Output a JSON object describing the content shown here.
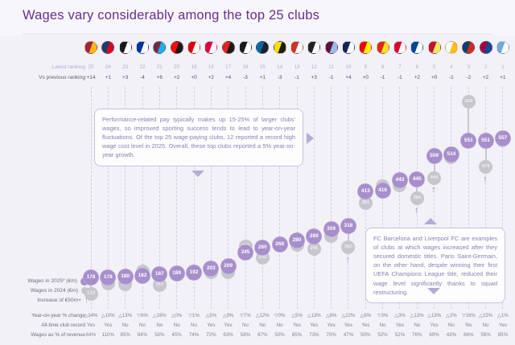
{
  "title": "Wages vary considerably among the top 25 clubs",
  "left_panel": {
    "latest_ranking_label": "Latest ranking",
    "vs_previous_label": "Vs previous ranking"
  },
  "legend": {
    "wages_2025": "Wages in 2025* (€m)",
    "wages_2024": "Wages in 2024 (€m)",
    "increase": "Increase of €50m+"
  },
  "row_labels": {
    "yoy": "Year-on-year % change",
    "record": "All-time club record",
    "revenue": "Wages as % of revenue"
  },
  "annotations": {
    "left": "Performance-related pay typically makes up 15-25% of larger clubs' wages, so improved sporting success tends to lead to year-on-year fluctuations. Of the top 25 wage-paying clubs, 12 reported a record high wage cost level in 2025. Overall, these top clubs reported a 5% year-on-year growth.",
    "right": "FC Barcelona and Liverpool FC are examples of clubs at which wages increased after they secured domestic titles. Paris Saint-Germain, on the other hand, despite winning their first UEFA Champions League title, reduced their wage level significantly thanks to squad restructuring."
  },
  "colors": {
    "accent_purple": "#6a2c91",
    "bubble_2025": "#a88ecb",
    "bubble_2024": "#c7c6cd",
    "annotation_border": "#c8c1de"
  },
  "chart_data": {
    "type": "bubble",
    "unit": "€m",
    "x_order": "revenue rank 25 (left) to 1 (right)",
    "ylim": [
      130,
      660
    ],
    "series": [
      "Wages in 2025 (€m)",
      "Wages in 2024 (€m)"
    ],
    "clubs": [
      {
        "rank": 25,
        "club": "Galatasaray",
        "vs_previous": "+14",
        "wages_2025": 178,
        "wages_2024": 133,
        "yoy_change": "△34%",
        "all_time_record": "Yes",
        "wages_pct_revenue": "64%",
        "increase_50m_plus": false,
        "badge_colors": [
          "#A32638",
          "#FDB912"
        ]
      },
      {
        "rank": 24,
        "club": "Olympique Lyonnais",
        "vs_previous": "+1",
        "wages_2025": 178,
        "wages_2024": 162,
        "yoy_change": "△10%",
        "all_time_record": "Yes",
        "wages_pct_revenue": "110%",
        "increase_50m_plus": false,
        "badge_colors": [
          "#1B3D6D",
          "#DA0812"
        ]
      },
      {
        "rank": 23,
        "club": "Fulham",
        "vs_previous": "+3",
        "wages_2025": 180,
        "wages_2024": 159,
        "yoy_change": "△13%",
        "all_time_record": "No",
        "wages_pct_revenue": "85%",
        "increase_50m_plus": false,
        "badge_colors": [
          "#1a1a1a",
          "#ffffff"
        ]
      },
      {
        "rank": 22,
        "club": "Everton",
        "vs_previous": "-4",
        "wages_2025": 182,
        "wages_2024": 194,
        "yoy_change": "▽6%",
        "all_time_record": "No",
        "wages_pct_revenue": "84%",
        "increase_50m_plus": false,
        "badge_colors": [
          "#003399",
          "#ffffff"
        ]
      },
      {
        "rank": 21,
        "club": "West Ham United",
        "vs_previous": "+6",
        "wages_2025": 187,
        "wages_2024": 157,
        "yoy_change": "△19%",
        "all_time_record": "No",
        "wages_pct_revenue": "58%",
        "increase_50m_plus": false,
        "badge_colors": [
          "#7A263A",
          "#1BB1E7"
        ]
      },
      {
        "rank": 20,
        "club": "AC Milan",
        "vs_previous": "+2",
        "wages_2025": 189,
        "wages_2024": 189,
        "yoy_change": "△0%",
        "all_time_record": "No",
        "wages_pct_revenue": "45%",
        "increase_50m_plus": false,
        "badge_colors": [
          "#FB090B",
          "#1a1a1a"
        ]
      },
      {
        "rank": 19,
        "club": "Nottingham Forest",
        "vs_previous": "+0",
        "wages_2025": 192,
        "wages_2024": 194,
        "yoy_change": "▽1%",
        "all_time_record": "No",
        "wages_pct_revenue": "74%",
        "increase_50m_plus": false,
        "badge_colors": [
          "#DD0000",
          "#ffffff"
        ]
      },
      {
        "rank": 18,
        "club": "RB Leipzig",
        "vs_previous": "+2",
        "wages_2025": 202,
        "wages_2024": 192,
        "yoy_change": "△5%",
        "all_time_record": "Yes",
        "wages_pct_revenue": "72%",
        "increase_50m_plus": false,
        "badge_colors": [
          "#DD013F",
          "#ffffff"
        ]
      },
      {
        "rank": 17,
        "club": "Bayer Leverkusen",
        "vs_previous": "+4",
        "wages_2025": 209,
        "wages_2024": 192,
        "yoy_change": "△9%",
        "all_time_record": "Yes",
        "wages_pct_revenue": "63%",
        "increase_50m_plus": false,
        "badge_colors": [
          "#E32221",
          "#1a1a1a"
        ]
      },
      {
        "rank": 16,
        "club": "Juventus",
        "vs_previous": "-3",
        "wages_2025": 245,
        "wages_2024": 263,
        "yoy_change": "▽7%",
        "all_time_record": "No",
        "wages_pct_revenue": "58%",
        "increase_50m_plus": false,
        "badge_colors": [
          "#1a1a1a",
          "#ffffff"
        ]
      },
      {
        "rank": 15,
        "club": "Inter Milan",
        "vs_previous": "+1",
        "wages_2025": 260,
        "wages_2024": 232,
        "yoy_change": "△12%",
        "all_time_record": "No",
        "wages_pct_revenue": "67%",
        "increase_50m_plus": false,
        "badge_colors": [
          "#0068A8",
          "#221F20"
        ]
      },
      {
        "rank": 14,
        "club": "Borussia Dortmund",
        "vs_previous": "-3",
        "wages_2025": 268,
        "wages_2024": 269,
        "yoy_change": "▽0%",
        "all_time_record": "No",
        "wages_pct_revenue": "50%",
        "increase_50m_plus": false,
        "badge_colors": [
          "#FDE100",
          "#1a1a1a"
        ]
      },
      {
        "rank": 13,
        "club": "Atlético de Madrid",
        "vs_previous": "-1",
        "wages_2025": 280,
        "wages_2024": 268,
        "yoy_change": "△5%",
        "all_time_record": "Yes",
        "wages_pct_revenue": "65%",
        "increase_50m_plus": false,
        "badge_colors": [
          "#CB3524",
          "#ffffff"
        ]
      },
      {
        "rank": 12,
        "club": "Newcastle United",
        "vs_previous": "+3",
        "wages_2025": 289,
        "wages_2024": 255,
        "yoy_change": "△13%",
        "all_time_record": "Yes",
        "wages_pct_revenue": "73%",
        "increase_50m_plus": false,
        "badge_colors": [
          "#241F20",
          "#ffffff"
        ]
      },
      {
        "rank": 11,
        "club": "Aston Villa",
        "vs_previous": "-1",
        "wages_2025": 309,
        "wages_2024": 291,
        "yoy_change": "△6%",
        "all_time_record": "Yes",
        "wages_pct_revenue": "70%",
        "increase_50m_plus": false,
        "badge_colors": [
          "#670E36",
          "#95BFE5"
        ]
      },
      {
        "rank": 10,
        "club": "Tottenham Hotspur",
        "vs_previous": "+4",
        "wages_2025": 318,
        "wages_2024": 260,
        "yoy_change": "△22%",
        "all_time_record": "Yes",
        "wages_pct_revenue": "47%",
        "increase_50m_plus": true,
        "badge_colors": [
          "#132257",
          "#ffffff"
        ]
      },
      {
        "rank": 9,
        "club": "Arsenal",
        "vs_previous": "+0",
        "wages_2025": 413,
        "wages_2024": 381,
        "yoy_change": "△8%",
        "all_time_record": "Yes",
        "wages_pct_revenue": "50%",
        "increase_50m_plus": false,
        "badge_colors": [
          "#EF0107",
          "#FFF200"
        ]
      },
      {
        "rank": 8,
        "club": "Manchester United",
        "vs_previous": "-1",
        "wages_2025": 416,
        "wages_2024": 428,
        "yoy_change": "▽3%",
        "all_time_record": "No",
        "wages_pct_revenue": "52%",
        "increase_50m_plus": false,
        "badge_colors": [
          "#DA291C",
          "#FBE122"
        ]
      },
      {
        "rank": 7,
        "club": "Bayern Munich",
        "vs_previous": "-1",
        "wages_2025": 443,
        "wages_2024": 430,
        "yoy_change": "△3%",
        "all_time_record": "Yes",
        "wages_pct_revenue": "52%",
        "increase_50m_plus": false,
        "badge_colors": [
          "#DC052D",
          "#ffffff"
        ]
      },
      {
        "rank": 6,
        "club": "Chelsea",
        "vs_previous": "+2",
        "wages_2025": 445,
        "wages_2024": 394,
        "yoy_change": "△13%",
        "all_time_record": "No",
        "wages_pct_revenue": "76%",
        "increase_50m_plus": true,
        "badge_colors": [
          "#034694",
          "#ffffff"
        ]
      },
      {
        "rank": 5,
        "club": "Liverpool",
        "vs_previous": "+0",
        "wages_2025": 509,
        "wages_2024": 449,
        "yoy_change": "△13%",
        "all_time_record": "Yes",
        "wages_pct_revenue": "60%",
        "increase_50m_plus": true,
        "badge_colors": [
          "#C8102E",
          "#F6EB61"
        ]
      },
      {
        "rank": 4,
        "club": "Real Madrid",
        "vs_previous": "-1",
        "wages_2025": 514,
        "wages_2024": 505,
        "yoy_change": "△2%",
        "all_time_record": "No",
        "wages_pct_revenue": "43%",
        "increase_50m_plus": false,
        "badge_colors": [
          "#ffffff",
          "#FEBE10"
        ]
      },
      {
        "rank": 3,
        "club": "Paris Saint-Germain",
        "vs_previous": "-2",
        "wages_2025": 551,
        "wages_2024": 658,
        "yoy_change": "▽16%",
        "all_time_record": "No",
        "wages_pct_revenue": "66%",
        "increase_50m_plus": false,
        "badge_colors": [
          "#004170",
          "#DA291C"
        ]
      },
      {
        "rank": 2,
        "club": "FC Barcelona",
        "vs_previous": "+2",
        "wages_2025": 551,
        "wages_2024": 479,
        "yoy_change": "△15%",
        "all_time_record": "No",
        "wages_pct_revenue": "56%",
        "increase_50m_plus": true,
        "badge_colors": [
          "#A50044",
          "#004D98"
        ]
      },
      {
        "rank": 1,
        "club": "Manchester City",
        "vs_previous": "+1",
        "wages_2025": 557,
        "wages_2024": 553,
        "yoy_change": "△1%",
        "all_time_record": "Yes",
        "wages_pct_revenue": "65%",
        "increase_50m_plus": false,
        "badge_colors": [
          "#6CABDD",
          "#ffffff"
        ]
      }
    ]
  }
}
